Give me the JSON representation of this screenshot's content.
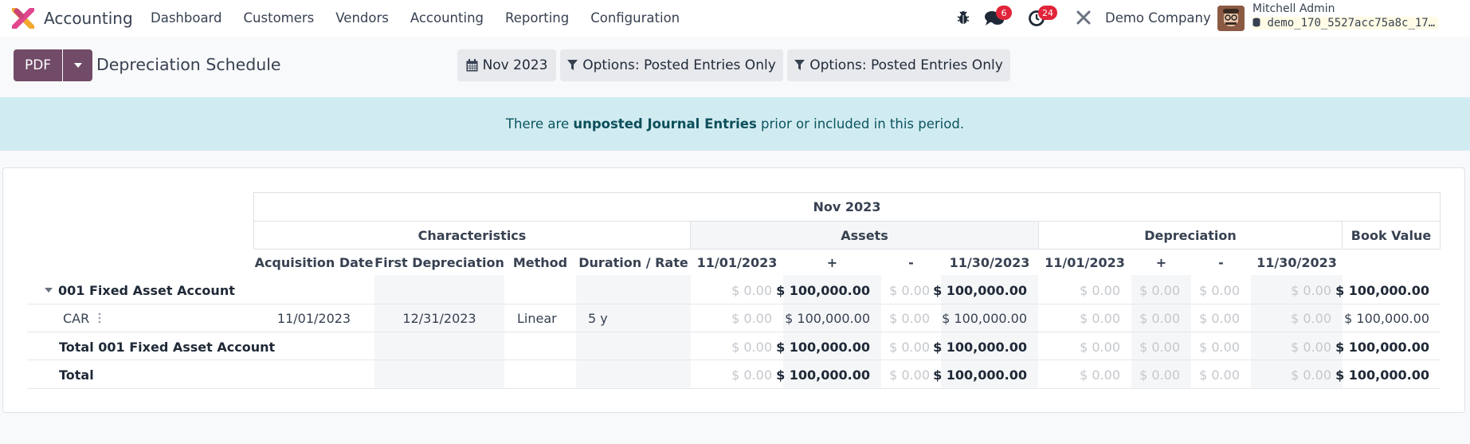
{
  "navbar": {
    "app_name": "Accounting",
    "menu": [
      "Dashboard",
      "Customers",
      "Vendors",
      "Accounting",
      "Reporting",
      "Configuration"
    ],
    "messages_badge": "6",
    "activities_badge": "24",
    "company": "Demo Company",
    "user_name": "Mitchell Admin",
    "db_name": "demo_170_5527acc75a8c_17…"
  },
  "control": {
    "pdf_label": "PDF",
    "title": "Depreciation Schedule",
    "filters": [
      "Nov 2023",
      "Options: Posted Entries Only",
      "Options: Posted Entries Only"
    ]
  },
  "alert": {
    "prefix": "There are ",
    "link": "unposted Journal Entries",
    "suffix": " prior or included in this period."
  },
  "report": {
    "period": "Nov 2023",
    "groups": [
      "Characteristics",
      "Assets",
      "Depreciation",
      "Book Value"
    ],
    "columns": [
      "Acquisition Date",
      "First Depreciation",
      "Method",
      "Duration / Rate",
      "11/01/2023",
      "+",
      "-",
      "11/30/2023",
      "11/01/2023",
      "+",
      "-",
      "11/30/2023"
    ],
    "rows": [
      {
        "name": "001 Fixed Asset Account",
        "type": "group",
        "chars": [
          "",
          "",
          "",
          ""
        ],
        "values": [
          "$ 0.00",
          "$ 100,000.00",
          "$ 0.00",
          "$ 100,000.00",
          "$ 0.00",
          "$ 0.00",
          "$ 0.00",
          "$ 0.00",
          "$ 100,000.00"
        ]
      },
      {
        "name": "CAR",
        "type": "line",
        "chars": [
          "11/01/2023",
          "12/31/2023",
          "Linear",
          "5 y"
        ],
        "values": [
          "$ 0.00",
          "$ 100,000.00",
          "$ 0.00",
          "$ 100,000.00",
          "$ 0.00",
          "$ 0.00",
          "$ 0.00",
          "$ 0.00",
          "$ 100,000.00"
        ]
      },
      {
        "name": "Total 001 Fixed Asset Account",
        "type": "total",
        "chars": [
          "",
          "",
          "",
          ""
        ],
        "values": [
          "$ 0.00",
          "$ 100,000.00",
          "$ 0.00",
          "$ 100,000.00",
          "$ 0.00",
          "$ 0.00",
          "$ 0.00",
          "$ 0.00",
          "$ 100,000.00"
        ]
      },
      {
        "name": "Total",
        "type": "total",
        "chars": [
          "",
          "",
          "",
          ""
        ],
        "values": [
          "$ 0.00",
          "$ 100,000.00",
          "$ 0.00",
          "$ 100,000.00",
          "$ 0.00",
          "$ 0.00",
          "$ 0.00",
          "$ 0.00",
          "$ 100,000.00"
        ]
      }
    ]
  },
  "colors": {
    "brand": "#714b67",
    "alert_bg": "#d1ecf1",
    "badge": "#e0243a"
  }
}
